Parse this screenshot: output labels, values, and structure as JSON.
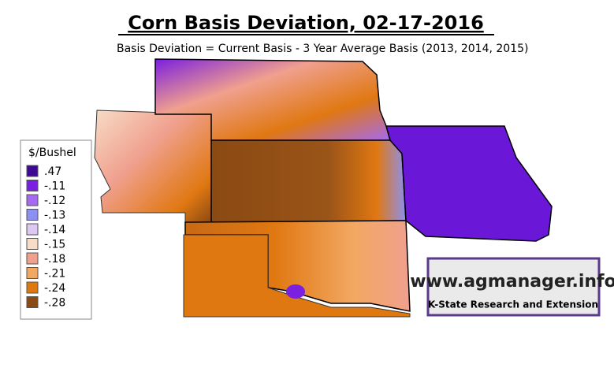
{
  "title": "Corn Basis Deviation, 02-17-2016",
  "subtitle": "Basis Deviation = Current Basis - 3 Year Average Basis (2013, 2014, 2015)",
  "legend": {
    "title": "$/Bushel",
    "items": [
      {
        "label": ".47",
        "color": "#3d0b93"
      },
      {
        "label": "-.11",
        "color": "#7b1fe0"
      },
      {
        "label": "-.12",
        "color": "#a56af0"
      },
      {
        "label": "-.13",
        "color": "#8c90f0"
      },
      {
        "label": "-.14",
        "color": "#dcc8f2"
      },
      {
        "label": "-.15",
        "color": "#f7dcc6"
      },
      {
        "label": "-.18",
        "color": "#f0a08e"
      },
      {
        "label": "-.21",
        "color": "#f3a862"
      },
      {
        "label": "-.24",
        "color": "#e07812"
      },
      {
        "label": "-.28",
        "color": "#8a4a12"
      }
    ]
  },
  "logo": {
    "url": "www.agmanager.info",
    "org": "K-State Research and Extension"
  }
}
